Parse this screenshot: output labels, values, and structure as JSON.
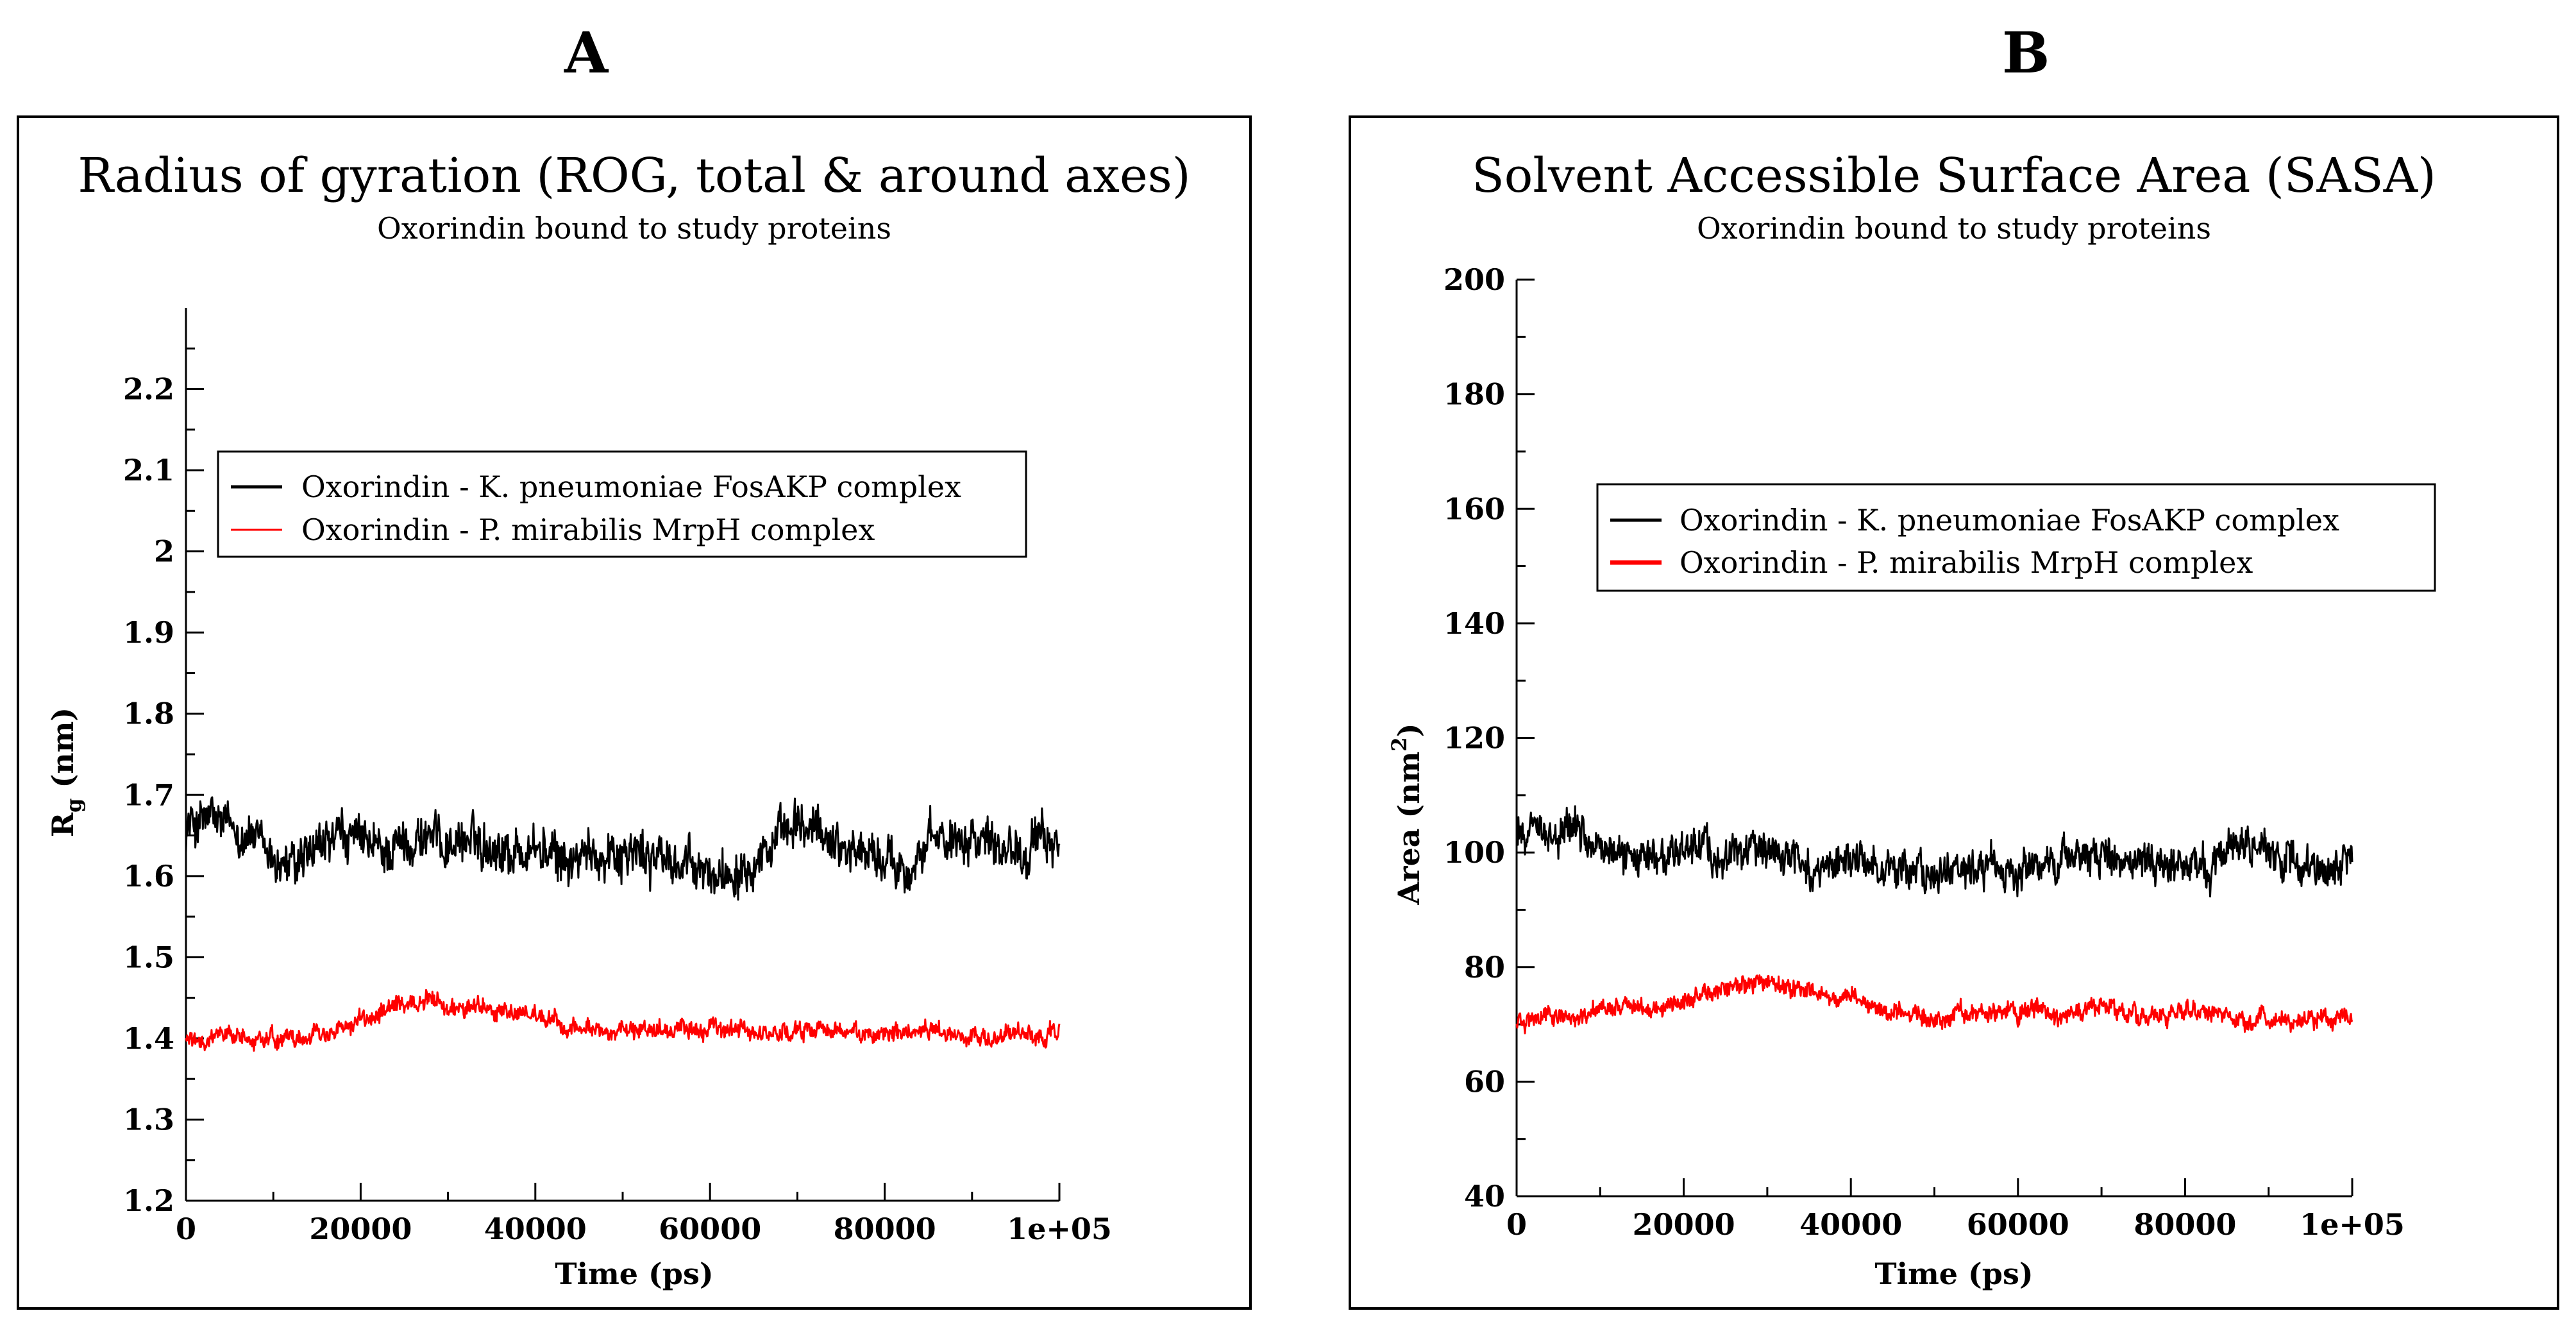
{
  "panels": [
    {
      "label": "A"
    },
    {
      "label": "B"
    }
  ],
  "chart_data": [
    {
      "type": "line",
      "title": "Radius of gyration (ROG, total & around axes)",
      "subtitle": "Oxorindin bound to study proteins",
      "xlabel": "Time (ps)",
      "ylabel_main": "R",
      "ylabel_sub": "g",
      "ylabel_rest": " (nm)",
      "xlim": [
        0,
        100000
      ],
      "ylim": [
        1.2,
        2.3
      ],
      "xticks": [
        0,
        20000,
        40000,
        60000,
        80000,
        100000
      ],
      "xtick_labels": [
        "0",
        "20000",
        "40000",
        "60000",
        "80000",
        "1e+05"
      ],
      "yticks": [
        1.2,
        1.3,
        1.4,
        1.5,
        1.6,
        1.7,
        1.8,
        1.9,
        2.0,
        2.1,
        2.2
      ],
      "ytick_labels": [
        "1.2",
        "1.3",
        "1.4",
        "1.5",
        "1.6",
        "1.7",
        "1.8",
        "1.9",
        "2",
        "2.1",
        "2.2"
      ],
      "legend": "top-left",
      "series": [
        {
          "name": "Oxorindin - K. pneumoniae FosAKP complex",
          "color": "#000000",
          "x": [
            0,
            2500,
            5000,
            7500,
            10000,
            12500,
            15000,
            17500,
            20000,
            22500,
            25000,
            27500,
            30000,
            32500,
            35000,
            37500,
            40000,
            42500,
            45000,
            47500,
            50000,
            52500,
            55000,
            57500,
            60000,
            62500,
            65000,
            67500,
            70000,
            72500,
            75000,
            77500,
            80000,
            82500,
            85000,
            87500,
            90000,
            92500,
            95000,
            97500,
            100000
          ],
          "values": [
            1.66,
            1.67,
            1.66,
            1.65,
            1.62,
            1.61,
            1.63,
            1.65,
            1.64,
            1.63,
            1.64,
            1.65,
            1.64,
            1.645,
            1.64,
            1.63,
            1.635,
            1.62,
            1.62,
            1.63,
            1.63,
            1.625,
            1.62,
            1.61,
            1.6,
            1.61,
            1.625,
            1.64,
            1.66,
            1.655,
            1.64,
            1.63,
            1.62,
            1.61,
            1.635,
            1.65,
            1.655,
            1.645,
            1.635,
            1.64,
            1.645
          ],
          "noise": 0.028
        },
        {
          "name": "Oxorindin - P. mirabilis MrpH complex",
          "color": "#ff0000",
          "x": [
            0,
            2500,
            5000,
            7500,
            10000,
            12500,
            15000,
            17500,
            20000,
            22500,
            25000,
            27500,
            30000,
            32500,
            35000,
            37500,
            40000,
            42500,
            45000,
            47500,
            50000,
            52500,
            55000,
            57500,
            60000,
            62500,
            65000,
            67500,
            70000,
            72500,
            75000,
            77500,
            80000,
            82500,
            85000,
            87500,
            90000,
            92500,
            95000,
            97500,
            100000
          ],
          "values": [
            1.4,
            1.4,
            1.405,
            1.4,
            1.4,
            1.4,
            1.405,
            1.41,
            1.42,
            1.43,
            1.44,
            1.445,
            1.44,
            1.44,
            1.435,
            1.43,
            1.425,
            1.42,
            1.41,
            1.41,
            1.41,
            1.41,
            1.41,
            1.41,
            1.41,
            1.41,
            1.41,
            1.405,
            1.41,
            1.41,
            1.405,
            1.41,
            1.405,
            1.405,
            1.41,
            1.405,
            1.405,
            1.4,
            1.405,
            1.405,
            1.405
          ],
          "noise": 0.011
        }
      ]
    },
    {
      "type": "line",
      "title": "Solvent Accessible Surface Area (SASA)",
      "subtitle": "Oxorindin bound to study proteins",
      "xlabel": "Time (ps)",
      "ylabel_main": "Area (nm",
      "ylabel_sup": "2",
      "ylabel_rest": ")",
      "xlim": [
        0,
        100000
      ],
      "ylim": [
        40,
        200
      ],
      "xticks": [
        0,
        20000,
        40000,
        60000,
        80000,
        100000
      ],
      "xtick_labels": [
        "0",
        "20000",
        "40000",
        "60000",
        "80000",
        "1e+05"
      ],
      "yticks": [
        40,
        60,
        80,
        100,
        120,
        140,
        160,
        180,
        200
      ],
      "ytick_labels": [
        "40",
        "60",
        "80",
        "100",
        "120",
        "140",
        "160",
        "180",
        "200"
      ],
      "legend": "top-left",
      "series": [
        {
          "name": "Oxorindin - K. pneumoniae FosAKP complex",
          "color": "#000000",
          "x": [
            0,
            2500,
            5000,
            7500,
            10000,
            12500,
            15000,
            17500,
            20000,
            22500,
            25000,
            27500,
            30000,
            32500,
            35000,
            37500,
            40000,
            42500,
            45000,
            47500,
            50000,
            52500,
            55000,
            57500,
            60000,
            62500,
            65000,
            67500,
            70000,
            72500,
            75000,
            77500,
            80000,
            82500,
            85000,
            87500,
            90000,
            92500,
            95000,
            97500,
            100000
          ],
          "values": [
            103,
            104,
            104,
            103,
            102,
            100,
            101,
            100,
            100,
            101,
            100,
            100,
            101,
            100,
            97,
            98,
            99,
            98,
            98,
            97,
            96,
            97,
            97,
            98,
            97,
            98,
            98,
            99,
            99,
            98,
            98,
            98,
            98,
            97,
            101,
            101,
            100,
            98,
            96,
            97,
            99
          ],
          "noise": 3.2
        },
        {
          "name": "Oxorindin - P. mirabilis MrpH complex",
          "color": "#ff0000",
          "x": [
            0,
            2500,
            5000,
            7500,
            10000,
            12500,
            15000,
            17500,
            20000,
            22500,
            25000,
            27500,
            30000,
            32500,
            35000,
            37500,
            40000,
            42500,
            45000,
            47500,
            50000,
            52500,
            55000,
            57500,
            60000,
            62500,
            65000,
            67500,
            70000,
            72500,
            75000,
            77500,
            80000,
            82500,
            85000,
            87500,
            90000,
            92500,
            95000,
            97500,
            100000
          ],
          "values": [
            71,
            71,
            72,
            72,
            72,
            73,
            73,
            73,
            74,
            76,
            77,
            77,
            77,
            76,
            76,
            75,
            75,
            73,
            72,
            72,
            71,
            72,
            72,
            72,
            72,
            72,
            72,
            72,
            73,
            72,
            72,
            71,
            72,
            72,
            71,
            71,
            71,
            71,
            71,
            71,
            71
          ],
          "noise": 1.6
        }
      ]
    }
  ]
}
